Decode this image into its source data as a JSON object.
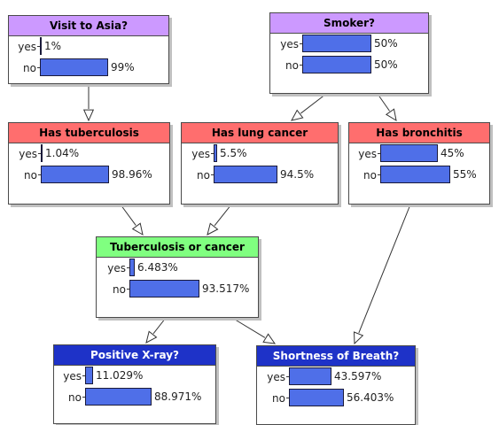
{
  "title_colors": {
    "root": "#cc99ff",
    "intermediate": "#ff6e6e",
    "combined": "#80ff80",
    "evidence": "#1e32c8",
    "evidence_text": "#ffffff",
    "default_text": "#000000"
  },
  "bar_color": "#4f6fe8",
  "nodes": [
    {
      "id": "asia",
      "title": "Visit to Asia?",
      "kind": "root",
      "states": [
        {
          "label": "yes",
          "value": "1%",
          "prob": 0.01
        },
        {
          "label": "no",
          "value": "99%",
          "prob": 0.99
        }
      ]
    },
    {
      "id": "smoker",
      "title": "Smoker?",
      "kind": "root",
      "states": [
        {
          "label": "yes",
          "value": "50%",
          "prob": 0.5
        },
        {
          "label": "no",
          "value": "50%",
          "prob": 0.5
        }
      ]
    },
    {
      "id": "tuberculosis",
      "title": "Has tuberculosis",
      "kind": "intermediate",
      "states": [
        {
          "label": "yes",
          "value": "1.04%",
          "prob": 0.0104
        },
        {
          "label": "no",
          "value": "98.96%",
          "prob": 0.9896
        }
      ]
    },
    {
      "id": "lung_cancer",
      "title": "Has lung cancer",
      "kind": "intermediate",
      "states": [
        {
          "label": "yes",
          "value": "5.5%",
          "prob": 0.055
        },
        {
          "label": "no",
          "value": "94.5%",
          "prob": 0.945
        }
      ]
    },
    {
      "id": "bronchitis",
      "title": "Has bronchitis",
      "kind": "intermediate",
      "states": [
        {
          "label": "yes",
          "value": "45%",
          "prob": 0.45
        },
        {
          "label": "no",
          "value": "55%",
          "prob": 0.55
        }
      ]
    },
    {
      "id": "tb_or_cancer",
      "title": "Tuberculosis or cancer",
      "kind": "combined",
      "states": [
        {
          "label": "yes",
          "value": "6.483%",
          "prob": 0.06483
        },
        {
          "label": "no",
          "value": "93.517%",
          "prob": 0.93517
        }
      ]
    },
    {
      "id": "xray",
      "title": "Positive X-ray?",
      "kind": "evidence",
      "states": [
        {
          "label": "yes",
          "value": "11.029%",
          "prob": 0.11029
        },
        {
          "label": "no",
          "value": "88.971%",
          "prob": 0.88971
        }
      ]
    },
    {
      "id": "dyspnea",
      "title": "Shortness of Breath?",
      "kind": "evidence",
      "states": [
        {
          "label": "yes",
          "value": "43.597%",
          "prob": 0.43597
        },
        {
          "label": "no",
          "value": "56.403%",
          "prob": 0.56403
        }
      ]
    }
  ],
  "edges": [
    {
      "from": "asia",
      "to": "tuberculosis"
    },
    {
      "from": "smoker",
      "to": "lung_cancer"
    },
    {
      "from": "smoker",
      "to": "bronchitis"
    },
    {
      "from": "tuberculosis",
      "to": "tb_or_cancer"
    },
    {
      "from": "lung_cancer",
      "to": "tb_or_cancer"
    },
    {
      "from": "tb_or_cancer",
      "to": "xray"
    },
    {
      "from": "tb_or_cancer",
      "to": "dyspnea"
    },
    {
      "from": "bronchitis",
      "to": "dyspnea"
    }
  ]
}
